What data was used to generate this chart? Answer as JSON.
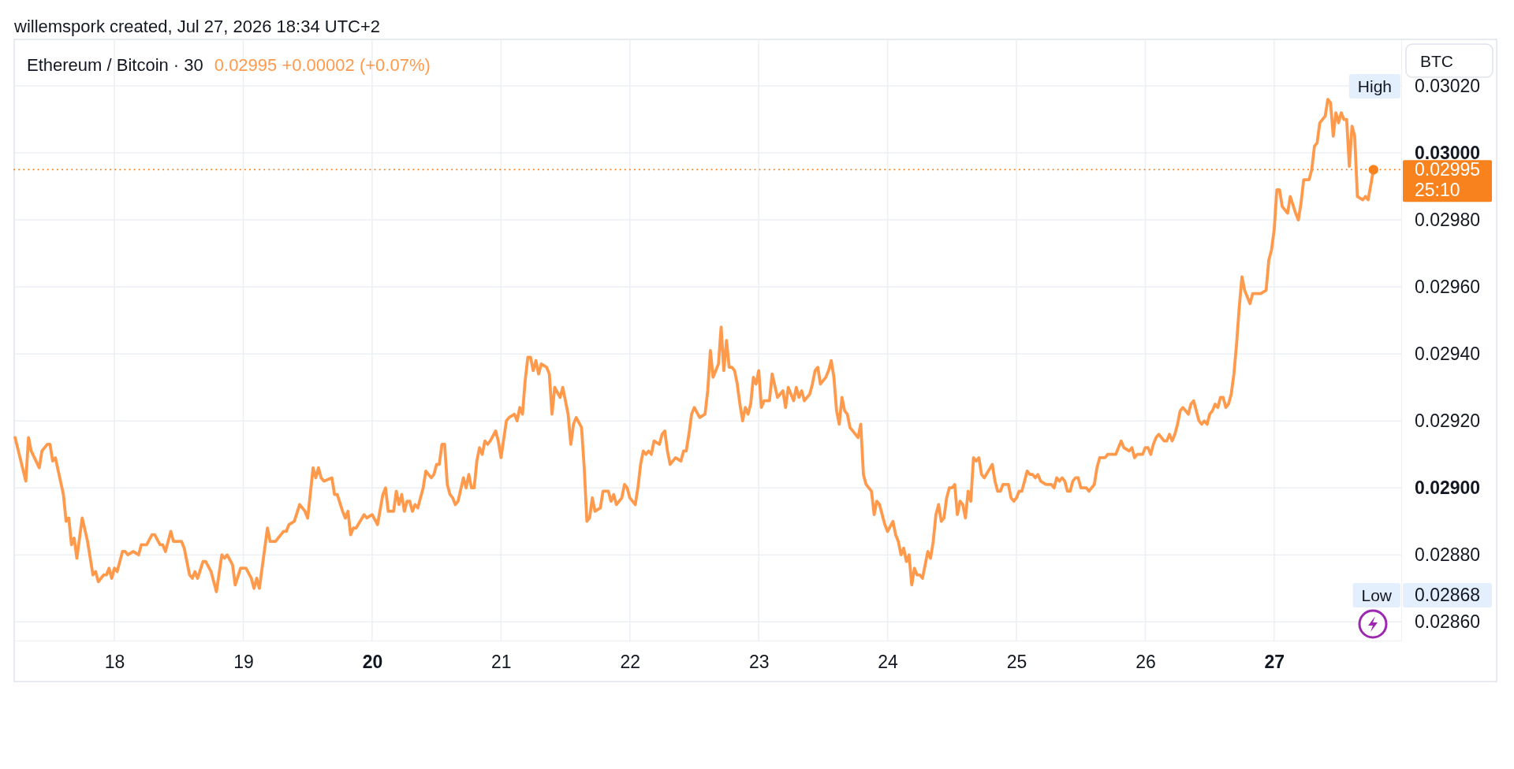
{
  "chart_data": {
    "type": "line",
    "title": "Ethereum / Bitcoin · 30",
    "subtitle": "0.02995 +0.00002 (+0.07%)",
    "annotations": [
      "willemspork created, Jul 27, 2026 18:34 UTC+2",
      "BTC",
      "25:10",
      "High",
      "Low",
      "0.02868"
    ],
    "xlim": [
      "2026-07-17T05:20",
      "2026-07-27T23:40"
    ],
    "xticks": [
      {
        "value": "2026-07-18",
        "label": "18"
      },
      {
        "value": "2026-07-19",
        "label": "19"
      },
      {
        "value": "2026-07-20",
        "label": "20"
      },
      {
        "value": "2026-07-21",
        "label": "21"
      },
      {
        "value": "2026-07-22",
        "label": "22"
      },
      {
        "value": "2026-07-23",
        "label": "23"
      },
      {
        "value": "2026-07-24",
        "label": "24"
      },
      {
        "value": "2026-07-25",
        "label": "25"
      },
      {
        "value": "2026-07-26",
        "label": "26"
      },
      {
        "value": "2026-07-27",
        "label": "27"
      }
    ],
    "ylim": [
      0.028544,
      0.030339
    ],
    "yticks": [
      {
        "value": 0.0286,
        "label": "0.02860"
      },
      {
        "value": 0.0288,
        "label": "0.02880"
      },
      {
        "value": 0.029,
        "label": "0.02900"
      },
      {
        "value": 0.0292,
        "label": "0.02920"
      },
      {
        "value": 0.0294,
        "label": "0.02940"
      },
      {
        "value": 0.0296,
        "label": "0.02960"
      },
      {
        "value": 0.0298,
        "label": "0.02980"
      },
      {
        "value": 0.03,
        "label": "0.03000"
      },
      {
        "value": 0.0302,
        "label": "0.03020"
      }
    ],
    "grid": true,
    "ref_lines": [
      {
        "axis": "y",
        "value": 0.02995,
        "label": "0.02995",
        "color": "#f8821e",
        "line_style": "dotted"
      }
    ],
    "series": [
      {
        "color": "#ff9a4d",
        "x": [
          "2026-07-17T05:30",
          "2026-07-17T07:30",
          "2026-07-17T08:00",
          "2026-07-17T08:30",
          "2026-07-17T10:00",
          "2026-07-17T10:30",
          "2026-07-17T11:30",
          "2026-07-17T12:00",
          "2026-07-17T12:30",
          "2026-07-17T13:00",
          "2026-07-17T14:30",
          "2026-07-17T15:00",
          "2026-07-17T15:30",
          "2026-07-17T16:00",
          "2026-07-17T16:30",
          "2026-07-17T17:00",
          "2026-07-17T18:00",
          "2026-07-17T19:00",
          "2026-07-17T20:00",
          "2026-07-17T20:30",
          "2026-07-17T21:00",
          "2026-07-17T22:00",
          "2026-07-17T22:30",
          "2026-07-17T23:00",
          "2026-07-17T23:30",
          "2026-07-18T00:00",
          "2026-07-18T00:30",
          "2026-07-18T01:30",
          "2026-07-18T02:00",
          "2026-07-18T02:30",
          "2026-07-18T03:30",
          "2026-07-18T04:30",
          "2026-07-18T05:00",
          "2026-07-18T06:00",
          "2026-07-18T07:00",
          "2026-07-18T07:30",
          "2026-07-18T08:30",
          "2026-07-18T09:00",
          "2026-07-18T09:30",
          "2026-07-18T10:30",
          "2026-07-18T11:00",
          "2026-07-18T12:30",
          "2026-07-18T13:00",
          "2026-07-18T14:00",
          "2026-07-18T14:30",
          "2026-07-18T15:00",
          "2026-07-18T15:30",
          "2026-07-18T16:30",
          "2026-07-18T17:00",
          "2026-07-18T18:00",
          "2026-07-18T19:00",
          "2026-07-18T20:00",
          "2026-07-18T20:30",
          "2026-07-18T21:00",
          "2026-07-18T22:00",
          "2026-07-18T22:30",
          "2026-07-18T23:30",
          "2026-07-19T00:30",
          "2026-07-19T01:30",
          "2026-07-19T02:00",
          "2026-07-19T02:30",
          "2026-07-19T03:00",
          "2026-07-19T04:30",
          "2026-07-19T05:00",
          "2026-07-19T06:00",
          "2026-07-19T07:30",
          "2026-07-19T08:00",
          "2026-07-19T08:30",
          "2026-07-19T09:30",
          "2026-07-19T10:30",
          "2026-07-19T11:30",
          "2026-07-19T12:00",
          "2026-07-19T13:00",
          "2026-07-19T13:30",
          "2026-07-19T14:00",
          "2026-07-19T14:30",
          "2026-07-19T15:00",
          "2026-07-19T16:30",
          "2026-07-19T17:00",
          "2026-07-19T17:30",
          "2026-07-19T18:30",
          "2026-07-19T19:00",
          "2026-07-19T19:30",
          "2026-07-19T20:00",
          "2026-07-19T20:30",
          "2026-07-19T21:00",
          "2026-07-19T22:30",
          "2026-07-19T23:00",
          "2026-07-20T00:00",
          "2026-07-20T01:00",
          "2026-07-20T02:00",
          "2026-07-20T02:30",
          "2026-07-20T03:00",
          "2026-07-20T04:00",
          "2026-07-20T04:30",
          "2026-07-20T05:00",
          "2026-07-20T05:30",
          "2026-07-20T06:00",
          "2026-07-20T06:30",
          "2026-07-20T07:00",
          "2026-07-20T07:30",
          "2026-07-20T08:00",
          "2026-07-20T08:30",
          "2026-07-20T09:30",
          "2026-07-20T10:00",
          "2026-07-20T11:00",
          "2026-07-20T11:30",
          "2026-07-20T12:00",
          "2026-07-20T12:30",
          "2026-07-20T13:00",
          "2026-07-20T13:30",
          "2026-07-20T14:00",
          "2026-07-20T14:30",
          "2026-07-20T15:00",
          "2026-07-20T15:30",
          "2026-07-20T16:00",
          "2026-07-20T17:00",
          "2026-07-20T17:30",
          "2026-07-20T18:00",
          "2026-07-20T18:30",
          "2026-07-20T19:00",
          "2026-07-20T19:30",
          "2026-07-20T20:00",
          "2026-07-20T20:30",
          "2026-07-20T21:00",
          "2026-07-20T21:30",
          "2026-07-20T22:00",
          "2026-07-20T23:00",
          "2026-07-20T23:30",
          "2026-07-21T00:00",
          "2026-07-21T01:00",
          "2026-07-21T01:30",
          "2026-07-21T02:30",
          "2026-07-21T03:00",
          "2026-07-21T03:30",
          "2026-07-21T04:00",
          "2026-07-21T04:30",
          "2026-07-21T05:00",
          "2026-07-21T05:30",
          "2026-07-21T06:00",
          "2026-07-21T06:30",
          "2026-07-21T07:00",
          "2026-07-21T07:30",
          "2026-07-21T08:30",
          "2026-07-21T09:00",
          "2026-07-21T09:30",
          "2026-07-21T10:00",
          "2026-07-21T11:00",
          "2026-07-21T11:30",
          "2026-07-21T12:30",
          "2026-07-21T13:00",
          "2026-07-21T13:30",
          "2026-07-21T14:00",
          "2026-07-21T15:00",
          "2026-07-21T15:30",
          "2026-07-21T16:00",
          "2026-07-21T16:30",
          "2026-07-21T17:00",
          "2026-07-21T17:30",
          "2026-07-21T18:30",
          "2026-07-21T19:00",
          "2026-07-21T20:00",
          "2026-07-21T20:30",
          "2026-07-21T21:00",
          "2026-07-21T21:30",
          "2026-07-21T22:30",
          "2026-07-21T23:00",
          "2026-07-21T23:30",
          "2026-07-22T00:00",
          "2026-07-22T01:00",
          "2026-07-22T01:30",
          "2026-07-22T02:00",
          "2026-07-22T02:30",
          "2026-07-22T03:00",
          "2026-07-22T03:30",
          "2026-07-22T04:00",
          "2026-07-22T04:30",
          "2026-07-22T05:30",
          "2026-07-22T06:00",
          "2026-07-22T06:30",
          "2026-07-22T07:00",
          "2026-07-22T07:30",
          "2026-07-22T08:30",
          "2026-07-22T09:30",
          "2026-07-22T10:00",
          "2026-07-22T10:30",
          "2026-07-22T11:00",
          "2026-07-22T11:30",
          "2026-07-22T12:00",
          "2026-07-22T13:00",
          "2026-07-22T14:00",
          "2026-07-22T14:30",
          "2026-07-22T15:00",
          "2026-07-22T15:30",
          "2026-07-22T16:30",
          "2026-07-22T17:00",
          "2026-07-22T17:30",
          "2026-07-22T18:00",
          "2026-07-22T18:30",
          "2026-07-22T19:00",
          "2026-07-22T19:30",
          "2026-07-22T20:00",
          "2026-07-22T20:30",
          "2026-07-22T21:00",
          "2026-07-22T21:30",
          "2026-07-22T22:00",
          "2026-07-22T22:30",
          "2026-07-22T23:00",
          "2026-07-22T23:30",
          "2026-07-23T00:00",
          "2026-07-23T00:30",
          "2026-07-23T01:00",
          "2026-07-23T02:00",
          "2026-07-23T02:30",
          "2026-07-23T03:30",
          "2026-07-23T04:30",
          "2026-07-23T05:00",
          "2026-07-23T05:30",
          "2026-07-23T06:30",
          "2026-07-23T07:00",
          "2026-07-23T07:30",
          "2026-07-23T08:00",
          "2026-07-23T08:30",
          "2026-07-23T09:30",
          "2026-07-23T10:00",
          "2026-07-23T10:30",
          "2026-07-23T11:00",
          "2026-07-23T11:30",
          "2026-07-23T12:30",
          "2026-07-23T13:00",
          "2026-07-23T13:30",
          "2026-07-23T14:00",
          "2026-07-23T14:30",
          "2026-07-23T15:00",
          "2026-07-23T15:30",
          "2026-07-23T16:00",
          "2026-07-23T16:30",
          "2026-07-23T17:00",
          "2026-07-23T18:30",
          "2026-07-23T19:00",
          "2026-07-23T19:30",
          "2026-07-23T20:00",
          "2026-07-23T21:00",
          "2026-07-23T21:30",
          "2026-07-23T22:00",
          "2026-07-23T22:30",
          "2026-07-23T23:30",
          "2026-07-24T00:00",
          "2026-07-24T01:00",
          "2026-07-24T01:30",
          "2026-07-24T02:00",
          "2026-07-24T02:30",
          "2026-07-24T03:00",
          "2026-07-24T03:30",
          "2026-07-24T04:00",
          "2026-07-24T04:30",
          "2026-07-24T05:00",
          "2026-07-24T05:30",
          "2026-07-24T06:00",
          "2026-07-24T06:30",
          "2026-07-24T07:30",
          "2026-07-24T08:00",
          "2026-07-24T08:30",
          "2026-07-24T09:00",
          "2026-07-24T09:30",
          "2026-07-24T10:00",
          "2026-07-24T10:30",
          "2026-07-24T11:00",
          "2026-07-24T11:30",
          "2026-07-24T12:00",
          "2026-07-24T12:30",
          "2026-07-24T13:00",
          "2026-07-24T13:30",
          "2026-07-24T14:00",
          "2026-07-24T14:30",
          "2026-07-24T15:00",
          "2026-07-24T15:30",
          "2026-07-24T16:00",
          "2026-07-24T16:30",
          "2026-07-24T17:00",
          "2026-07-24T17:30",
          "2026-07-24T18:00",
          "2026-07-24T19:30",
          "2026-07-24T20:00",
          "2026-07-24T20:30",
          "2026-07-24T21:00",
          "2026-07-24T21:30",
          "2026-07-24T22:30",
          "2026-07-24T23:00",
          "2026-07-24T23:30",
          "2026-07-25T00:00",
          "2026-07-25T00:30",
          "2026-07-25T01:00",
          "2026-07-25T02:00",
          "2026-07-25T02:30",
          "2026-07-25T03:00",
          "2026-07-25T03:30",
          "2026-07-25T04:00",
          "2026-07-25T04:30",
          "2026-07-25T05:30",
          "2026-07-25T06:30",
          "2026-07-25T07:00",
          "2026-07-25T07:30",
          "2026-07-25T08:00",
          "2026-07-25T08:30",
          "2026-07-25T09:00",
          "2026-07-25T09:30",
          "2026-07-25T10:00",
          "2026-07-25T10:30",
          "2026-07-25T11:00",
          "2026-07-25T11:30",
          "2026-07-25T12:00",
          "2026-07-25T13:00",
          "2026-07-25T13:30",
          "2026-07-25T14:30",
          "2026-07-25T15:00",
          "2026-07-25T15:30",
          "2026-07-25T16:30",
          "2026-07-25T17:00",
          "2026-07-25T18:30",
          "2026-07-25T19:30",
          "2026-07-25T20:00",
          "2026-07-25T21:00",
          "2026-07-25T21:30",
          "2026-07-25T22:00",
          "2026-07-25T22:30",
          "2026-07-25T23:30",
          "2026-07-26T00:00",
          "2026-07-26T00:30",
          "2026-07-26T01:00",
          "2026-07-26T01:30",
          "2026-07-26T02:00",
          "2026-07-26T02:30",
          "2026-07-26T03:30",
          "2026-07-26T04:00",
          "2026-07-26T04:30",
          "2026-07-26T05:00",
          "2026-07-26T05:30",
          "2026-07-26T06:00",
          "2026-07-26T06:30",
          "2026-07-26T07:00",
          "2026-07-26T08:00",
          "2026-07-26T08:30",
          "2026-07-26T09:00",
          "2026-07-26T10:00",
          "2026-07-26T10:30",
          "2026-07-26T11:00",
          "2026-07-26T11:30",
          "2026-07-26T12:00",
          "2026-07-26T12:30",
          "2026-07-26T13:00",
          "2026-07-26T13:30",
          "2026-07-26T14:00",
          "2026-07-26T14:30",
          "2026-07-26T15:00",
          "2026-07-26T15:30",
          "2026-07-26T16:00",
          "2026-07-26T16:30",
          "2026-07-26T17:00",
          "2026-07-26T17:30",
          "2026-07-26T18:00",
          "2026-07-26T18:30",
          "2026-07-26T19:30",
          "2026-07-26T20:00",
          "2026-07-26T21:30",
          "2026-07-26T22:30",
          "2026-07-26T23:00",
          "2026-07-26T23:30",
          "2026-07-27T00:00",
          "2026-07-27T00:30",
          "2026-07-27T01:00",
          "2026-07-27T01:30",
          "2026-07-27T02:30",
          "2026-07-27T03:00",
          "2026-07-27T04:00",
          "2026-07-27T04:30",
          "2026-07-27T05:00",
          "2026-07-27T05:30",
          "2026-07-27T06:30",
          "2026-07-27T07:00",
          "2026-07-27T07:30",
          "2026-07-27T08:00",
          "2026-07-27T08:30",
          "2026-07-27T09:00",
          "2026-07-27T09:30",
          "2026-07-27T10:00",
          "2026-07-27T10:30",
          "2026-07-27T11:00",
          "2026-07-27T11:30",
          "2026-07-27T12:00",
          "2026-07-27T12:30",
          "2026-07-27T13:00",
          "2026-07-27T13:30",
          "2026-07-27T14:00",
          "2026-07-27T14:30",
          "2026-07-27T15:00",
          "2026-07-27T15:30",
          "2026-07-27T16:30",
          "2026-07-27T17:00",
          "2026-07-27T17:30",
          "2026-07-27T18:30"
        ],
        "values": [
          0.02915,
          0.02902,
          0.02915,
          0.02911,
          0.02906,
          0.02911,
          0.02913,
          0.02913,
          0.02908,
          0.02909,
          0.02898,
          0.0289,
          0.02891,
          0.02883,
          0.02885,
          0.02879,
          0.02891,
          0.02884,
          0.02874,
          0.02875,
          0.02872,
          0.02874,
          0.02874,
          0.02876,
          0.02873,
          0.02876,
          0.02875,
          0.02881,
          0.02881,
          0.0288,
          0.02881,
          0.0288,
          0.02883,
          0.02883,
          0.02886,
          0.02886,
          0.02883,
          0.02883,
          0.02881,
          0.02887,
          0.02884,
          0.02884,
          0.02882,
          0.02874,
          0.02873,
          0.02875,
          0.02873,
          0.02878,
          0.02878,
          0.02875,
          0.02869,
          0.0288,
          0.02879,
          0.0288,
          0.02877,
          0.02871,
          0.02876,
          0.02876,
          0.02873,
          0.0287,
          0.02873,
          0.0287,
          0.02888,
          0.02884,
          0.02884,
          0.02887,
          0.02887,
          0.02889,
          0.0289,
          0.02895,
          0.02893,
          0.02891,
          0.02906,
          0.02903,
          0.02906,
          0.02903,
          0.02902,
          0.02903,
          0.02898,
          0.02898,
          0.02893,
          0.02891,
          0.02893,
          0.02886,
          0.02888,
          0.02888,
          0.02892,
          0.02891,
          0.02892,
          0.02889,
          0.02898,
          0.029,
          0.02893,
          0.02893,
          0.02899,
          0.02895,
          0.02898,
          0.02893,
          0.02896,
          0.02896,
          0.02893,
          0.02895,
          0.02894,
          0.029,
          0.02905,
          0.02903,
          0.02904,
          0.02907,
          0.02907,
          0.02913,
          0.02913,
          0.02901,
          0.02898,
          0.02897,
          0.02895,
          0.02896,
          0.02903,
          0.029,
          0.02904,
          0.029,
          0.029,
          0.02908,
          0.02912,
          0.0291,
          0.02914,
          0.02913,
          0.02914,
          0.02917,
          0.02914,
          0.02909,
          0.0292,
          0.02921,
          0.02922,
          0.0292,
          0.02924,
          0.02922,
          0.02932,
          0.02939,
          0.02939,
          0.02935,
          0.02938,
          0.02934,
          0.02937,
          0.02936,
          0.02934,
          0.02922,
          0.0293,
          0.02927,
          0.0293,
          0.02922,
          0.02913,
          0.02919,
          0.02921,
          0.02918,
          0.02906,
          0.0289,
          0.02891,
          0.02897,
          0.02893,
          0.02894,
          0.02899,
          0.02899,
          0.02896,
          0.02898,
          0.02895,
          0.02897,
          0.02901,
          0.029,
          0.02897,
          0.02895,
          0.029,
          0.02907,
          0.02911,
          0.0291,
          0.02911,
          0.0291,
          0.02914,
          0.02913,
          0.02916,
          0.02917,
          0.02911,
          0.02907,
          0.02909,
          0.02908,
          0.02911,
          0.02911,
          0.02916,
          0.02922,
          0.02924,
          0.02921,
          0.02922,
          0.02929,
          0.02941,
          0.02933,
          0.02937,
          0.02948,
          0.02935,
          0.02944,
          0.02936,
          0.02936,
          0.02935,
          0.02931,
          0.02925,
          0.0292,
          0.02924,
          0.02922,
          0.02925,
          0.02933,
          0.02931,
          0.02935,
          0.02924,
          0.02926,
          0.02926,
          0.02934,
          0.02927,
          0.02929,
          0.02924,
          0.0293,
          0.02926,
          0.0293,
          0.02927,
          0.02929,
          0.02926,
          0.02928,
          0.02931,
          0.02935,
          0.02936,
          0.02931,
          0.02933,
          0.02935,
          0.02938,
          0.02933,
          0.02923,
          0.02919,
          0.02927,
          0.02923,
          0.02922,
          0.02918,
          0.02915,
          0.02919,
          0.02904,
          0.02901,
          0.02899,
          0.02892,
          0.02896,
          0.02895,
          0.02889,
          0.02887,
          0.0289,
          0.02886,
          0.02884,
          0.0288,
          0.02882,
          0.02878,
          0.0288,
          0.02871,
          0.02876,
          0.02874,
          0.02874,
          0.02873,
          0.02881,
          0.02879,
          0.02884,
          0.02892,
          0.02895,
          0.0289,
          0.02891,
          0.02897,
          0.029,
          0.029,
          0.02901,
          0.02892,
          0.02896,
          0.02895,
          0.02891,
          0.02899,
          0.02896,
          0.02909,
          0.02908,
          0.02909,
          0.02904,
          0.02903,
          0.02907,
          0.02902,
          0.02899,
          0.02899,
          0.02901,
          0.02901,
          0.02897,
          0.02896,
          0.02897,
          0.02899,
          0.02899,
          0.02905,
          0.02904,
          0.02904,
          0.02903,
          0.02904,
          0.02902,
          0.02901,
          0.02901,
          0.029,
          0.02903,
          0.02902,
          0.02903,
          0.02902,
          0.02899,
          0.02899,
          0.02902,
          0.02903,
          0.02903,
          0.029,
          0.029,
          0.02899,
          0.02901,
          0.02906,
          0.02909,
          0.02909,
          0.0291,
          0.0291,
          0.02914,
          0.02912,
          0.02911,
          0.02912,
          0.02909,
          0.0291,
          0.0291,
          0.02912,
          0.02912,
          0.0291,
          0.02913,
          0.02915,
          0.02916,
          0.02914,
          0.02914,
          0.02916,
          0.02914,
          0.02916,
          0.02919,
          0.02923,
          0.02924,
          0.02922,
          0.02925,
          0.02926,
          0.0292,
          0.02919,
          0.0292,
          0.02919,
          0.02922,
          0.02923,
          0.02925,
          0.02924,
          0.02927,
          0.02927,
          0.02924,
          0.02925,
          0.02928,
          0.02934,
          0.02943,
          0.02954,
          0.02963,
          0.02959,
          0.02955,
          0.02958,
          0.02958,
          0.02959,
          0.02968,
          0.02971,
          0.02977,
          0.02989,
          0.02989,
          0.02984,
          0.02982,
          0.02987,
          0.02982,
          0.0298,
          0.02985,
          0.02992,
          0.02992,
          0.02995,
          0.03002,
          0.03003,
          0.03009,
          0.0301,
          0.03011,
          0.03016,
          0.03015,
          0.03005,
          0.03012,
          0.03009,
          0.03012,
          0.0301,
          0.0301,
          0.02996,
          0.03008,
          0.03005,
          0.02987,
          0.02986,
          0.02987,
          0.02986,
          0.02995
        ]
      },
      {
        "type": "scatter",
        "color": "#f8821e",
        "marker": "circle",
        "x": [
          "2026-07-27T18:30"
        ],
        "values": [
          0.02995
        ]
      }
    ]
  }
}
